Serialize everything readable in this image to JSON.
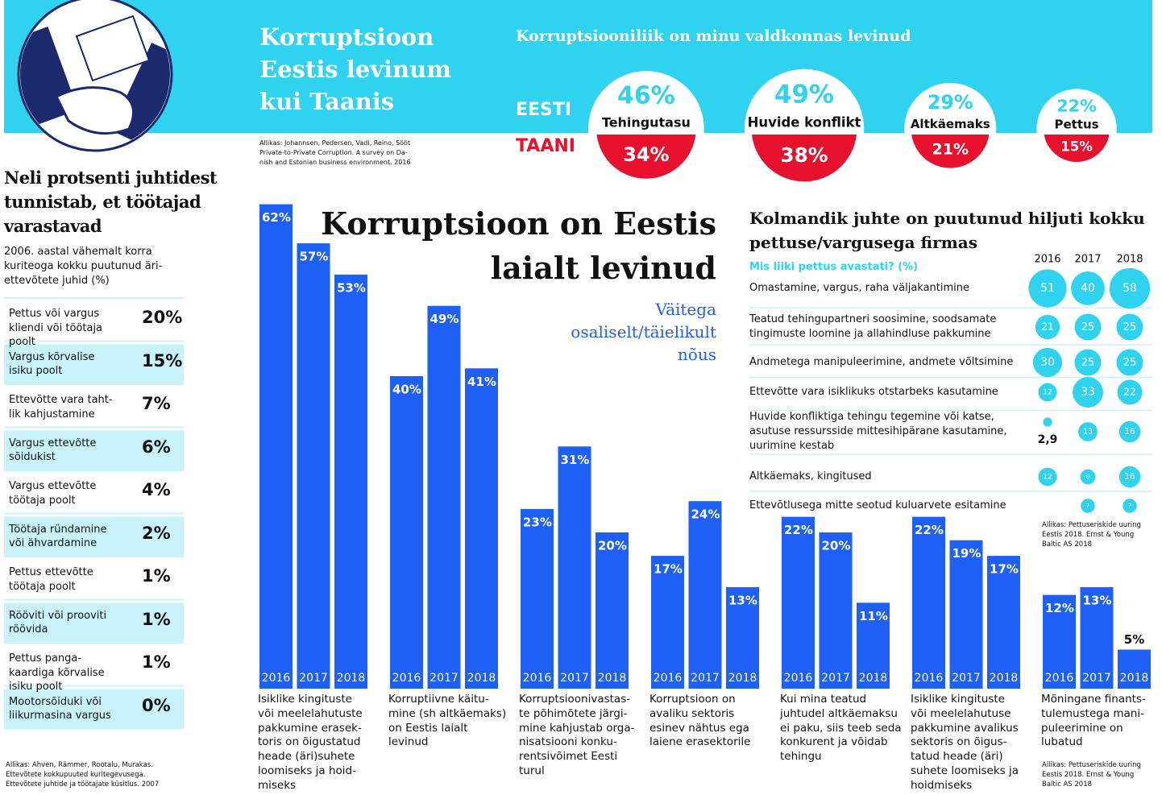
{
  "header": {
    "title": "Korruptsioon\nEestis levinum\nkui Taanis",
    "source": "Allikas: Johannsen, Pedersen, Vadi, Reino, Sööt\nPrivate-to-Private Corruption. A survey on Da-\nnish and Estonian business environment. 2016"
  },
  "table": {
    "title": "Neli protsenti juhtidest\ntunnistab, et töötajad\nvarastavad",
    "subtitle": "2006. aastal vähemalt korra\nkuriteoga kokku puutunud äri-\nettevõtete juhid (%)",
    "rows": [
      [
        "Pettus või vargus\nkliendi või töötaja\npoolt",
        "20%"
      ],
      [
        "Vargus kõrvalise\nisiku poolt",
        "15%"
      ],
      [
        "Ettevõtte vara taht-\nlik kahjustamine",
        "7%"
      ],
      [
        "Vargus ettevõtte\nsõidukist",
        "6%"
      ],
      [
        "Vargus ettevõtte\ntöötaja poolt",
        "4%"
      ],
      [
        "Töötaja ründamine\nvõi ähvardamine",
        "2%"
      ],
      [
        "Pettus ettevõtte\ntöötaja poolt",
        "1%"
      ],
      [
        "Rööviti või prooviti\nröövida",
        "1%"
      ],
      [
        "Pettus panga-\nkaardiga kõrvalise\nisiku poolt",
        "1%"
      ],
      [
        "Mootorsõiduki või\nliikurmasina vargus",
        "0%"
      ]
    ],
    "source": "Allikas: Ahven, Rämmer, Rootalu, Murakas.\nEttevõtete kokkupuuted kuritegevusega.\nEttevõtete juhtide ja töötajate küsitlus. 2007"
  },
  "chart_data": [
    {
      "type": "bubble-pair",
      "title": "Korruptsiooniliik on minu valdkonnas levinud",
      "categories": [
        "Tehingutasu",
        "Huvide konflikt",
        "Altkäemaks",
        "Pettus"
      ],
      "series": [
        {
          "name": "EESTI",
          "color": "#ffffff",
          "values": [
            46,
            49,
            29,
            22
          ],
          "value_labels": [
            "46%",
            "49%",
            "29%",
            "22%"
          ]
        },
        {
          "name": "TAANI",
          "color": "#e8112d",
          "values": [
            34,
            38,
            21,
            15
          ],
          "value_labels": [
            "34%",
            "38%",
            "21%",
            "15%"
          ]
        }
      ]
    },
    {
      "type": "bar",
      "title": "Korruptsioon on Eestis\nlaialt levinud",
      "subtitle": "Väitega\nosaliselt/täielikult\nnõus",
      "categories": [
        "Isiklike kingituste\nvõi meelelahutuste\npakkumine erasek-\ntoris on õigustatud\nheade (äri)suhete\nloomiseks ja hoid-\nmiseks",
        "Korruptiivne käitu-\nmine (sh altkäemaks)\non Eestis laialt\nlevinud",
        "Korruptsioonivastas-\nte põhimõtete järgi-\nmine kahjustab orga-\nnisatsiooni konku-\nrentsivõimet Eesti\nturul",
        "Korruptsioon on\navaliku sektoris\nesinev nähtus ega\nlaiene erasektorile",
        "Kui mina teatud\njuhtudel altkäemaksu\nei paku, siis teeb seda\nkonkurent ja võidab\ntehingu",
        "Isiklike kingituste\nvõi meelelahutuse\npakkumine avalikus\nsektoris on õigus-\ntatud heade (äri)\nsuhete loomiseks ja\nhoidmiseks",
        "Mõningane finants-\ntulemustega mani-\npuleerimine on\nlubatud"
      ],
      "series": [
        {
          "name": "2016",
          "color": "#1e5ff5",
          "values": [
            62,
            40,
            23,
            17,
            22,
            22,
            12
          ],
          "value_labels": [
            "62%",
            "40%",
            "23%",
            "17%",
            "22%",
            "22%",
            "12%"
          ]
        },
        {
          "name": "2017",
          "color": "#1e5ff5",
          "values": [
            57,
            49,
            31,
            24,
            20,
            19,
            13
          ],
          "value_labels": [
            "57%",
            "49%",
            "31%",
            "24%",
            "20%",
            "19%",
            "13%"
          ]
        },
        {
          "name": "2018",
          "color": "#1e5ff5",
          "values": [
            53,
            41,
            20,
            13,
            11,
            17,
            5
          ],
          "value_labels": [
            "53%",
            "41%",
            "20%",
            "13%",
            "11%",
            "17%",
            "5%"
          ]
        }
      ],
      "note": "Allikas: Pettuseriskide uuring\nEestis 2018. Ernst & Young\nBaltic AS 2018"
    },
    {
      "type": "bubble-table",
      "title": "Kolmandik juhte on puutunud hiljuti kokku\npettuse/vargusega firmas",
      "subtitle": "Mis liiki pettus avastati? (%)",
      "categories": [
        "Omastamine, vargus, raha väljakantimine",
        "Teatud tehingupartneri soosimine, soodsamate\ntingimuste loomine ja allahindluse pakkumine",
        "Andmetega manipuleerimine, andmete võltsimine",
        "Ettevõtte vara isiklikuks otstarbeks kasutamine",
        "Huvide konfliktiga tehingu tegemine või katse,\nasutuse ressursside mittesihipärane kasutamine,\nuurimine kestab",
        "Altkäemaks, kingitused",
        "Ettevõtlusega mitte seotud kuluarvete esitamine"
      ],
      "series": [
        {
          "name": "2016",
          "color": "#2fd3ef",
          "values": [
            51,
            21,
            30,
            12,
            2.9,
            12,
            null
          ],
          "value_labels": [
            "51",
            "21",
            "30",
            "12",
            "2,9",
            "12",
            null
          ]
        },
        {
          "name": "2017",
          "color": "#2fd3ef",
          "values": [
            40,
            25,
            25,
            33,
            13,
            8,
            7
          ]
        },
        {
          "name": "2018",
          "color": "#2fd3ef",
          "values": [
            58,
            25,
            25,
            22,
            16,
            16,
            7
          ]
        }
      ],
      "note": "Allikas: Pettuseriskide uuring\nEestis 2018. Ernst & Young\nBaltic AS 2018"
    }
  ]
}
